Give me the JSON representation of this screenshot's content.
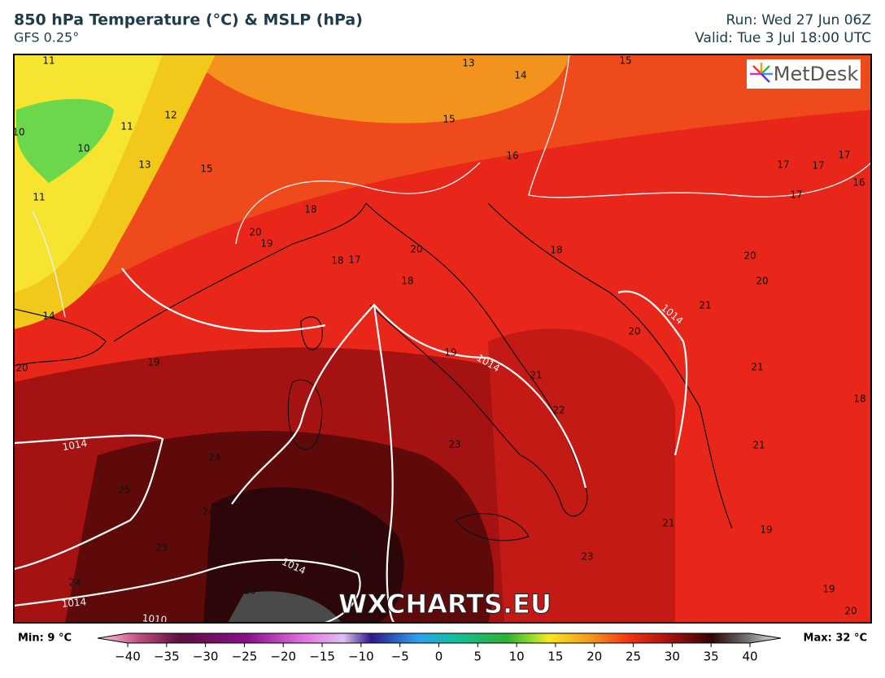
{
  "header": {
    "title": "850 hPa Temperature (°C) & MSLP (hPa)",
    "subtitle": "GFS 0.25°",
    "run": "Run: Wed 27 Jun 06Z",
    "valid": "Valid: Tue 3 Jul 18:00 UTC"
  },
  "logo": "MetDesk",
  "watermark": "WXCHARTS.EU",
  "temperature_labels": [
    "11",
    "13",
    "15",
    "14",
    "11",
    "12",
    "10",
    "10",
    "13",
    "15",
    "15",
    "16",
    "17",
    "17",
    "17",
    "17",
    "16",
    "11",
    "18",
    "20",
    "19",
    "20",
    "18",
    "18",
    "17",
    "18",
    "20",
    "20",
    "21",
    "14",
    "20",
    "19",
    "19",
    "21",
    "21",
    "20",
    "22",
    "18",
    "23",
    "24",
    "21",
    "25",
    "24",
    "21",
    "19",
    "25",
    "28",
    "23",
    "24",
    "26",
    "19",
    "20"
  ],
  "isobar_labels": [
    "1014",
    "1014",
    "1014",
    "1010",
    "1014",
    "1014"
  ],
  "legend": {
    "min_label": "Min: 9 °C",
    "max_label": "Max: 32 °C",
    "ticks": [
      {
        "value": -40,
        "label": "−40"
      },
      {
        "value": -35,
        "label": "−35"
      },
      {
        "value": -30,
        "label": "−30"
      },
      {
        "value": -25,
        "label": "−25"
      },
      {
        "value": -20,
        "label": "−20"
      },
      {
        "value": -15,
        "label": "−15"
      },
      {
        "value": -10,
        "label": "−10"
      },
      {
        "value": -5,
        "label": "−5"
      },
      0,
      5,
      10,
      15,
      20,
      25,
      30,
      35,
      40
    ]
  }
}
